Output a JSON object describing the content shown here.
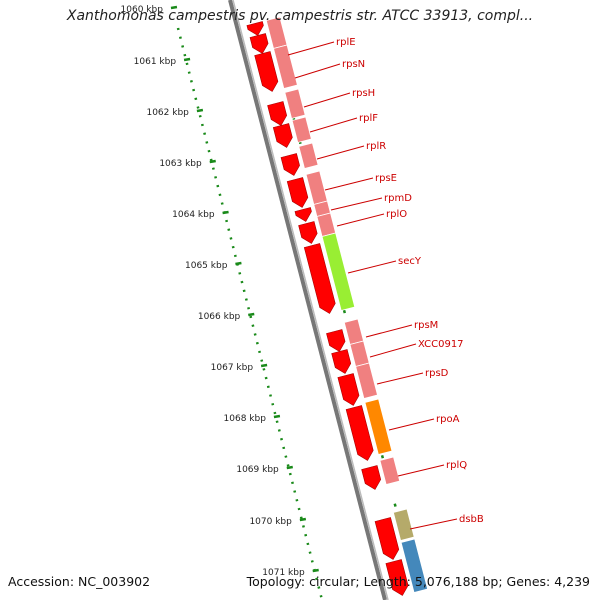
{
  "header": {
    "title": "Xanthomonas campestris pv. campestris str. ATCC 33913, compl..."
  },
  "footer": {
    "accession": "Accession: NC_003902",
    "summary": "Topology: circular; Length: 5,076,188 bp; Genes: 4,239"
  },
  "colors": {
    "cds": "#ff0000",
    "cds_pale": "#f08080",
    "secY": "#99ee33",
    "rpoA": "#ff8800",
    "rplQ": "#f08080",
    "dsbB": "#b5aa6a",
    "blue_feature": "#4488bb",
    "ticks": "#1a8a1a",
    "backbone": "#777777",
    "label_text": "#cc0000"
  },
  "ruler": {
    "ticks": [
      {
        "label": "1060 kbp"
      },
      {
        "label": "1061 kbp"
      },
      {
        "label": "1062 kbp"
      },
      {
        "label": "1063 kbp"
      },
      {
        "label": "1064 kbp"
      },
      {
        "label": "1065 kbp"
      },
      {
        "label": "1066 kbp"
      },
      {
        "label": "1067 kbp"
      },
      {
        "label": "1068 kbp"
      },
      {
        "label": "1069 kbp"
      },
      {
        "label": "1070 kbp"
      },
      {
        "label": "1071 kbp"
      }
    ]
  },
  "genes": [
    {
      "name": "rplE"
    },
    {
      "name": "rpsN"
    },
    {
      "name": "rpsH"
    },
    {
      "name": "rplF"
    },
    {
      "name": "rplR"
    },
    {
      "name": "rpsE"
    },
    {
      "name": "rpmD"
    },
    {
      "name": "rplO"
    },
    {
      "name": "secY"
    },
    {
      "name": "rpsM"
    },
    {
      "name": "XCC0917"
    },
    {
      "name": "rpsD"
    },
    {
      "name": "rpoA"
    },
    {
      "name": "rplQ"
    },
    {
      "name": "dsbB"
    }
  ]
}
